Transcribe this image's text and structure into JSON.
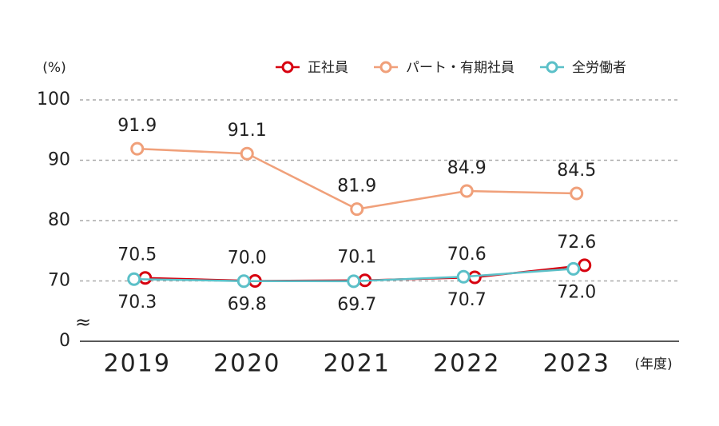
{
  "chart_data": {
    "type": "line",
    "y_label": "(%)",
    "x_label": "(年度)",
    "categories": [
      "2019",
      "2020",
      "2021",
      "2022",
      "2023"
    ],
    "series": [
      {
        "name": "正社員",
        "color": "#d7000f",
        "values": [
          70.5,
          70.0,
          70.1,
          70.6,
          72.6
        ],
        "value_labels": [
          "70.5",
          "70.0",
          "70.1",
          "70.6",
          "72.6"
        ]
      },
      {
        "name": "パート・有期社員",
        "color": "#f0a07a",
        "values": [
          91.9,
          91.1,
          81.9,
          84.9,
          84.5
        ],
        "value_labels": [
          "91.9",
          "91.1",
          "81.9",
          "84.9",
          "84.5"
        ]
      },
      {
        "name": "全労働者",
        "color": "#5bc0c8",
        "values": [
          70.3,
          69.8,
          69.7,
          70.7,
          72.0
        ],
        "value_labels": [
          "70.3",
          "69.8",
          "69.7",
          "70.7",
          "72.0"
        ]
      }
    ],
    "ylim": [
      0,
      100
    ],
    "yticks": [
      0,
      70,
      80,
      90,
      100
    ],
    "axis_break_symbol": "≈",
    "grid": true,
    "legend": "top-right"
  }
}
